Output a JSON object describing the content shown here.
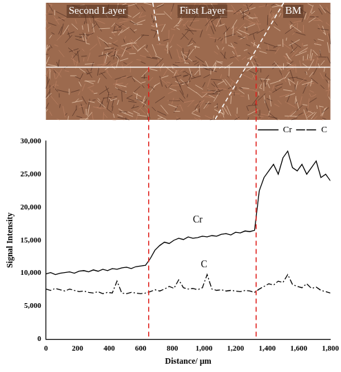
{
  "chart_data": {
    "type": "line",
    "x_label": "Distance/ μm",
    "y_label": "Signal Intensity",
    "x": [
      0,
      30,
      60,
      90,
      120,
      150,
      180,
      210,
      240,
      270,
      300,
      330,
      360,
      390,
      420,
      450,
      480,
      510,
      540,
      570,
      600,
      630,
      660,
      690,
      720,
      750,
      780,
      810,
      840,
      870,
      900,
      930,
      960,
      990,
      1020,
      1050,
      1080,
      1110,
      1140,
      1170,
      1200,
      1230,
      1260,
      1290,
      1320,
      1350,
      1380,
      1410,
      1440,
      1470,
      1500,
      1530,
      1560,
      1590,
      1620,
      1650,
      1680,
      1710,
      1740,
      1770,
      1800
    ],
    "series": [
      {
        "name": "Cr",
        "color": "#000000",
        "line_style": "solid",
        "values": [
          9900,
          10100,
          9800,
          10000,
          10100,
          10200,
          10000,
          10300,
          10400,
          10200,
          10500,
          10300,
          10600,
          10400,
          10700,
          10600,
          10800,
          10900,
          10700,
          11000,
          11100,
          11200,
          12200,
          13500,
          14200,
          14700,
          14500,
          15000,
          15300,
          15100,
          15500,
          15300,
          15400,
          15600,
          15500,
          15700,
          15600,
          15900,
          16000,
          15800,
          16200,
          16100,
          16400,
          16300,
          16500,
          22500,
          24500,
          25500,
          26500,
          25000,
          27500,
          28500,
          26000,
          25500,
          26500,
          25000,
          26000,
          27000,
          24500,
          25000,
          24000
        ]
      },
      {
        "name": "C",
        "color": "#000000",
        "line_style": "dashdot",
        "values": [
          7600,
          7400,
          7700,
          7500,
          7300,
          7600,
          7400,
          7200,
          7300,
          7100,
          7000,
          7200,
          6900,
          7100,
          7000,
          8800,
          7000,
          6900,
          7100,
          7000,
          6900,
          7000,
          7200,
          7500,
          7300,
          7600,
          8000,
          7700,
          9000,
          7800,
          7600,
          7700,
          7500,
          7800,
          9800,
          7600,
          7400,
          7500,
          7300,
          7400,
          7300,
          7200,
          7400,
          7300,
          7100,
          7600,
          8000,
          8400,
          8200,
          8800,
          8600,
          9800,
          8300,
          8000,
          7800,
          8400,
          7700,
          7900,
          7400,
          7200,
          7000
        ]
      }
    ],
    "xlim": [
      0,
      1800
    ],
    "xticks": [
      0,
      200,
      400,
      600,
      800,
      1000,
      1200,
      1400,
      1600,
      1800
    ],
    "ylim": [
      0,
      30000
    ],
    "yticks": [
      0,
      5000,
      10000,
      15000,
      20000,
      25000,
      30000
    ],
    "legend": "top-right",
    "grid": false,
    "annotations": [
      "Second Layer",
      "First Layer",
      "BM"
    ],
    "boundaries": [
      650,
      1330
    ]
  }
}
